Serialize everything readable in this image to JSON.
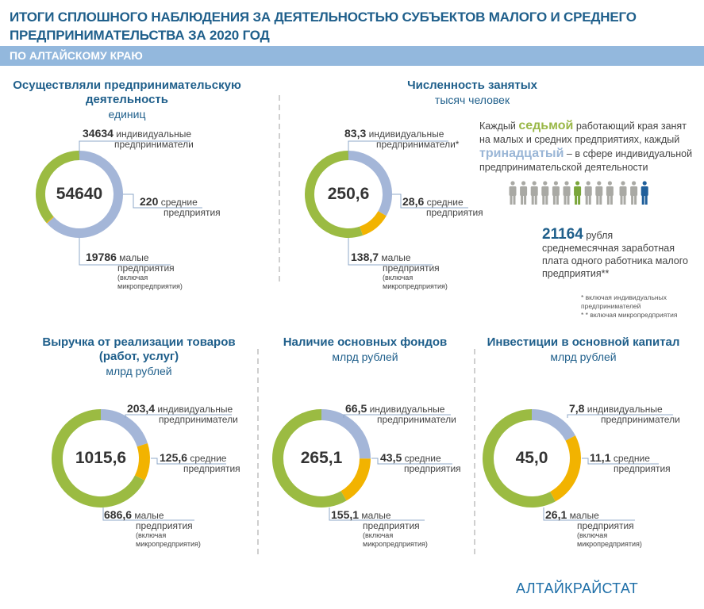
{
  "header": {
    "title_line1": "ИТОГИ СПЛОШНОГО НАБЛЮДЕНИЯ ЗА ДЕЯТЕЛЬНОСТЬЮ СУБЪЕКТОВ МАЛОГО И СРЕДНЕГО",
    "title_line2": "ПРЕДПРИНИМАТЕЛЬСТВА ЗА 2020 ГОД",
    "banner": "ПО АЛТАЙСКОМУ КРАЮ"
  },
  "colors": {
    "individual": "#a4b6d8",
    "medium": "#f2b300",
    "small": "#9bbb42",
    "person_default": "#a9a9a4",
    "person_seventh": "#7aa63a",
    "person_thirteenth": "#1f5f9b"
  },
  "info": {
    "p1": "Каждый",
    "seventh": "седьмой",
    "p2": "работающий края занят на малых и средних предприятиях, каждый",
    "thirteenth": "тринадцатый",
    "p3": "– в сфере индивидуальной предпринимательской деятельности",
    "wage_value": "21164",
    "wage_unit": "рубля",
    "wage_text": "среднемесячная заработная плата одного работника малого предприятия**",
    "footnote1": "* включая индивидуальных предпринимателей",
    "footnote2": "* * включая микропредприятия"
  },
  "brand": "АЛТАЙКРАЙСТАТ",
  "chart_data": [
    {
      "type": "pie",
      "title": "Осуществляли предпринимательскую деятельность",
      "unit": "единиц",
      "total": "54640",
      "categories": [
        "индивидуальные предприниматели",
        "средние предприятия",
        "малые предприятия"
      ],
      "values": [
        34634,
        220,
        19786
      ],
      "labels": [
        "34634",
        "220",
        "19786"
      ],
      "small_note": "(включая микропредприятия)"
    },
    {
      "type": "pie",
      "title": "Численность занятых",
      "unit": "тысяч человек",
      "total": "250,6",
      "categories": [
        "индивидуальные предприниматели*",
        "средние предприятия",
        "малые предприятия"
      ],
      "values": [
        83.3,
        28.6,
        138.7
      ],
      "labels": [
        "83,3",
        "28,6",
        "138,7"
      ],
      "small_note": "(включая микропредприятия)"
    },
    {
      "type": "pie",
      "title": "Выручка от реализации товаров (работ, услуг)",
      "unit": "млрд рублей",
      "total": "1015,6",
      "categories": [
        "индивидуальные предприниматели",
        "средние предприятия",
        "малые предприятия"
      ],
      "values": [
        203.4,
        125.6,
        686.6
      ],
      "labels": [
        "203,4",
        "125,6",
        "686,6"
      ],
      "small_note": "(включая микропредприятия)"
    },
    {
      "type": "pie",
      "title": "Наличие основных фондов",
      "unit": "млрд рублей",
      "total": "265,1",
      "categories": [
        "индивидуальные предприниматели",
        "средние предприятия",
        "малые предприятия"
      ],
      "values": [
        66.5,
        43.5,
        155.1
      ],
      "labels": [
        "66,5",
        "43,5",
        "155,1"
      ],
      "small_note": "(включая микропредприятия)"
    },
    {
      "type": "pie",
      "title": "Инвестиции в основной капитал",
      "unit": "млрд рублей",
      "total": "45,0",
      "categories": [
        "индивидуальные предприниматели",
        "средние предприятия",
        "малые предприятия"
      ],
      "values": [
        7.8,
        11.1,
        26.1
      ],
      "labels": [
        "7,8",
        "11,1",
        "26,1"
      ],
      "small_note": "(включая микропредприятия)"
    }
  ]
}
